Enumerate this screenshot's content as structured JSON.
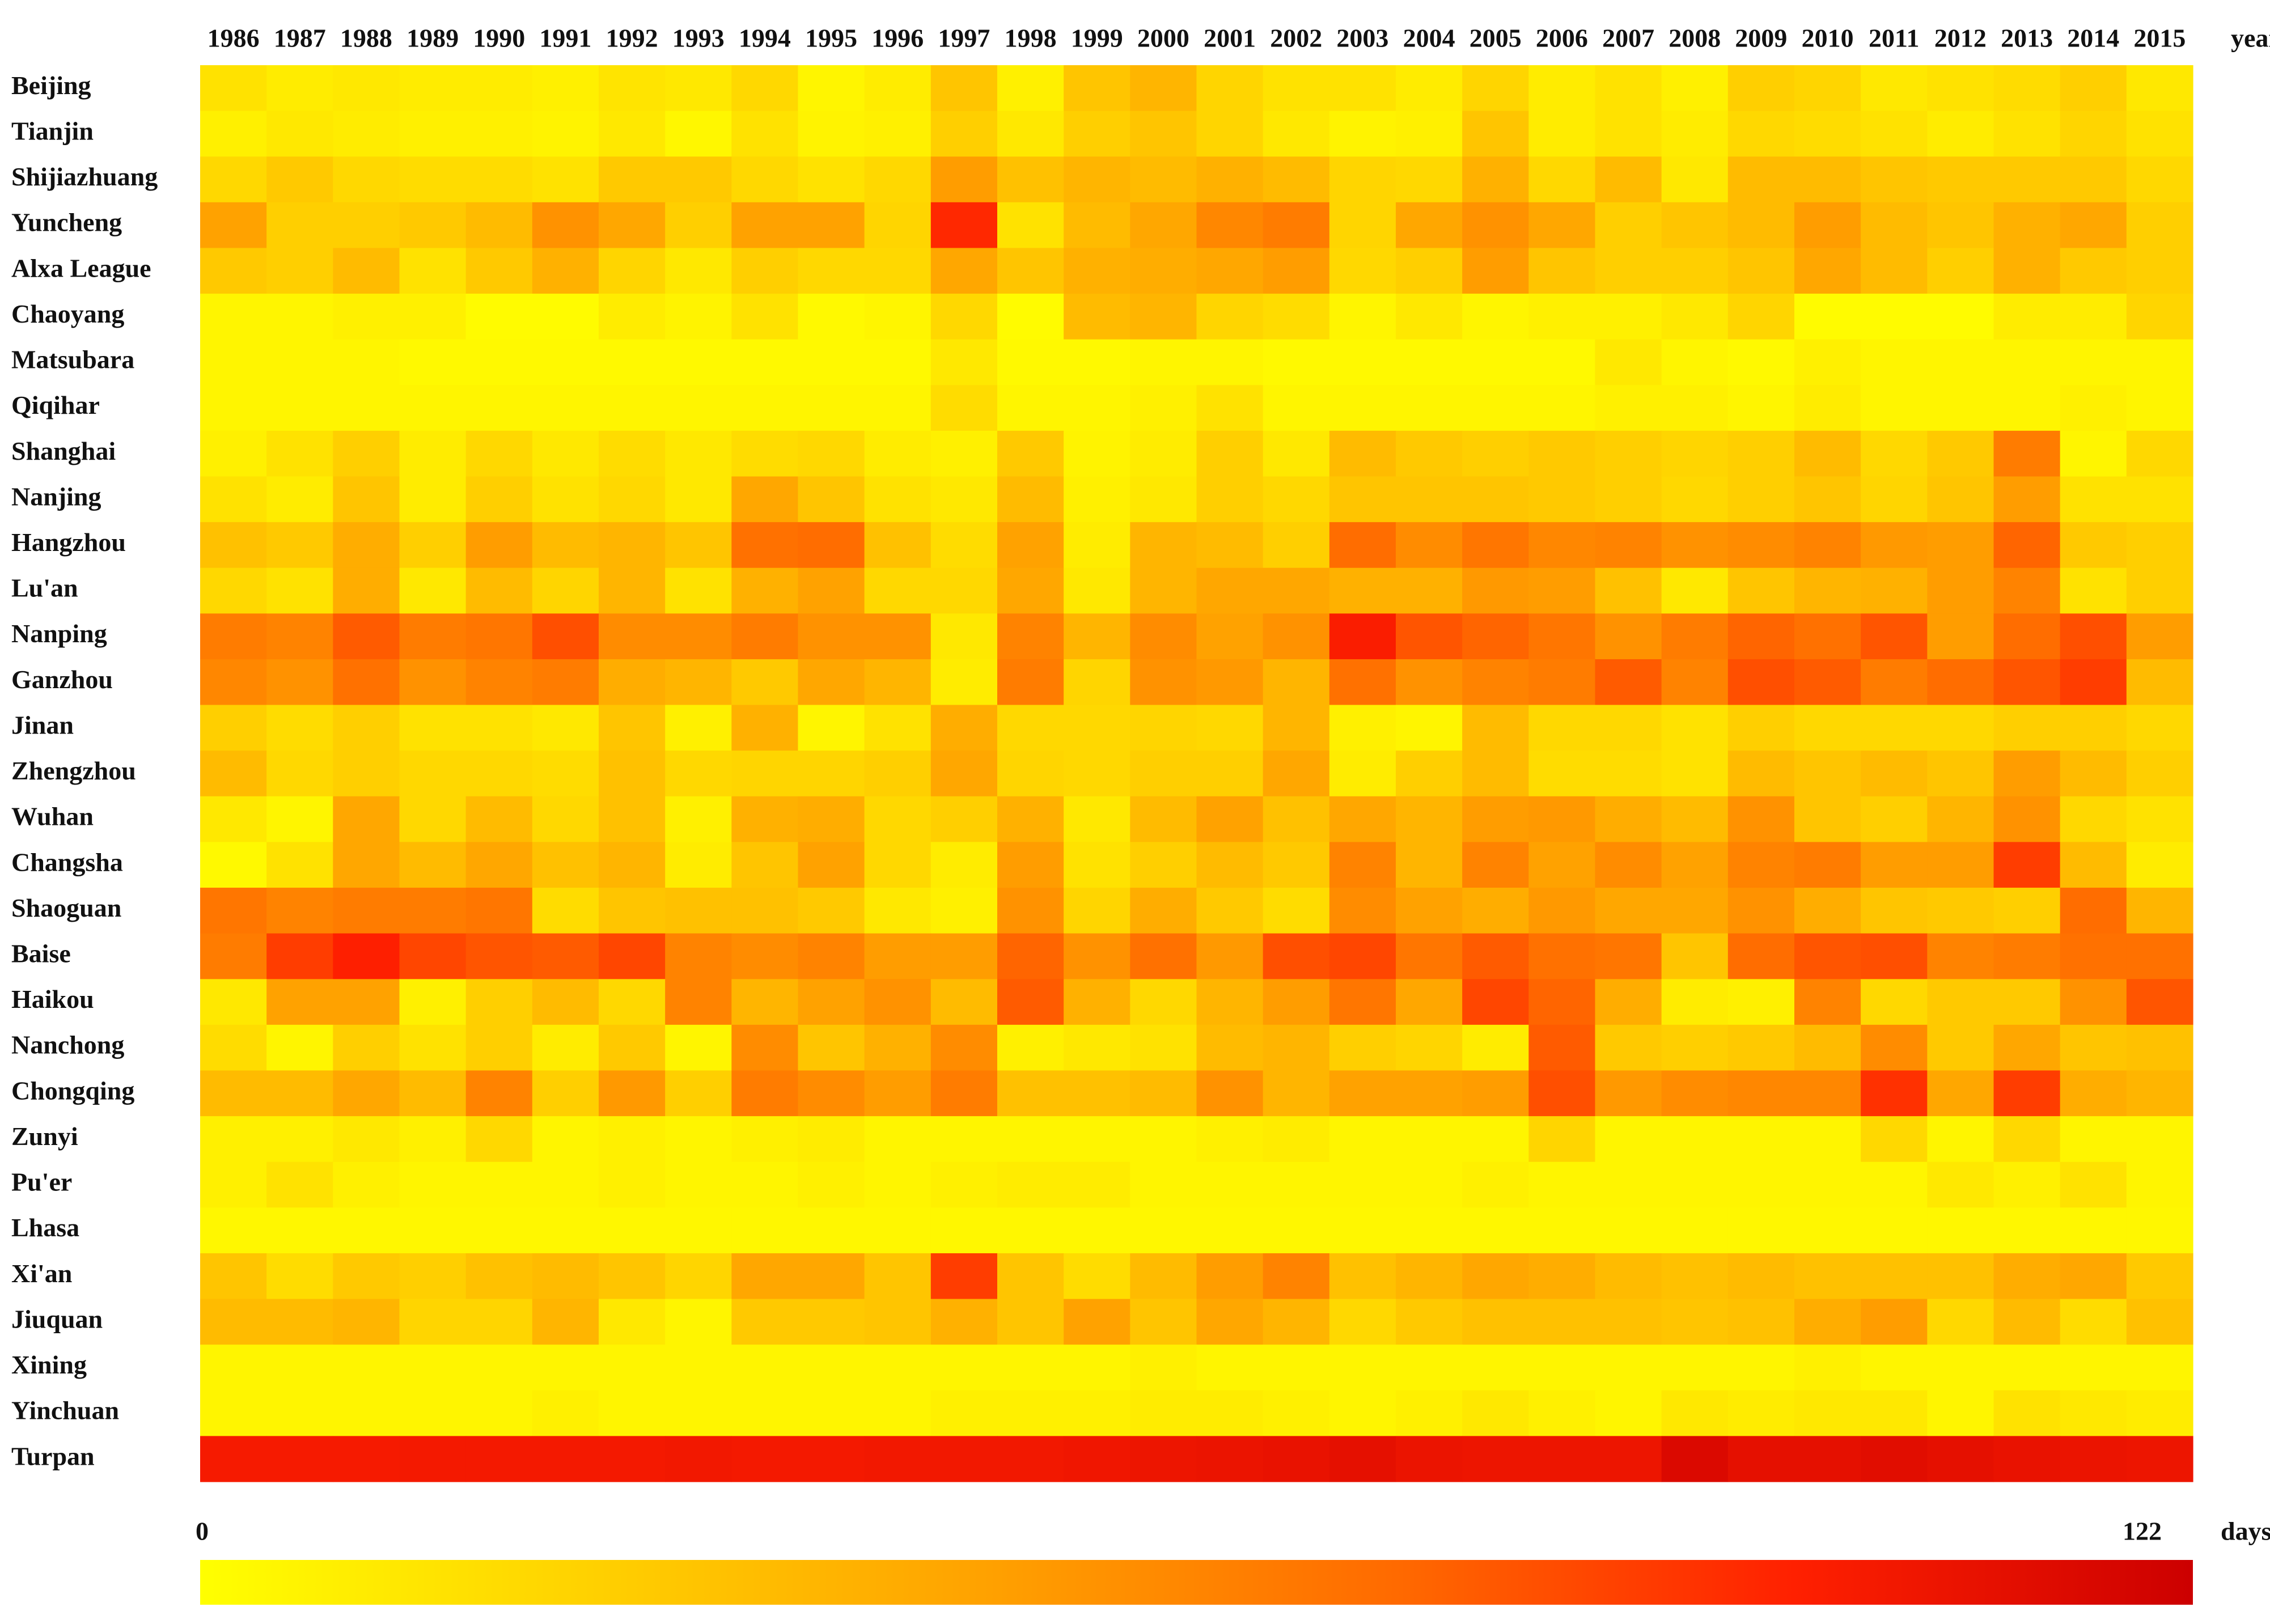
{
  "chart_data": {
    "type": "heatmap",
    "x": [
      "1986",
      "1987",
      "1988",
      "1989",
      "1990",
      "1991",
      "1992",
      "1993",
      "1994",
      "1995",
      "1996",
      "1997",
      "1998",
      "1999",
      "2000",
      "2001",
      "2002",
      "2003",
      "2004",
      "2005",
      "2006",
      "2007",
      "2008",
      "2009",
      "2010",
      "2011",
      "2012",
      "2013",
      "2014",
      "2015"
    ],
    "x_label": "years",
    "y": [
      "Beijing",
      "Tianjin",
      "Shijiazhuang",
      "Yuncheng",
      "Alxa League",
      "Chaoyang",
      "Matsubara",
      "Qiqihar",
      "Shanghai",
      "Nanjing",
      "Hangzhou",
      "Lu'an",
      "Nanping",
      "Ganzhou",
      "Jinan",
      "Zhengzhou",
      "Wuhan",
      "Changsha",
      "Shaoguan",
      "Baise",
      "Haikou",
      "Nanchong",
      "Chongqing",
      "Zunyi",
      "Pu'er",
      "Lhasa",
      "Xi'an",
      "Jiuquan",
      "Xining",
      "Yinchuan",
      "Turpan"
    ],
    "values": [
      [
        15,
        10,
        12,
        10,
        10,
        8,
        14,
        12,
        20,
        5,
        10,
        30,
        8,
        30,
        38,
        22,
        15,
        15,
        10,
        22,
        10,
        15,
        8,
        25,
        22,
        12,
        15,
        18,
        25,
        12
      ],
      [
        8,
        12,
        10,
        8,
        8,
        6,
        12,
        4,
        15,
        6,
        8,
        25,
        12,
        25,
        30,
        22,
        12,
        6,
        8,
        30,
        10,
        15,
        10,
        20,
        18,
        15,
        10,
        15,
        22,
        15
      ],
      [
        20,
        28,
        20,
        18,
        18,
        15,
        28,
        28,
        20,
        15,
        20,
        50,
        32,
        38,
        35,
        40,
        35,
        22,
        20,
        40,
        20,
        35,
        12,
        35,
        35,
        30,
        28,
        28,
        28,
        20
      ],
      [
        48,
        25,
        25,
        28,
        35,
        55,
        45,
        25,
        48,
        48,
        22,
        95,
        15,
        35,
        45,
        60,
        65,
        22,
        45,
        55,
        45,
        25,
        30,
        35,
        50,
        35,
        30,
        40,
        45,
        25
      ],
      [
        28,
        25,
        35,
        15,
        28,
        40,
        22,
        12,
        25,
        20,
        20,
        45,
        30,
        40,
        42,
        45,
        50,
        20,
        25,
        50,
        30,
        25,
        25,
        30,
        45,
        35,
        25,
        40,
        28,
        25
      ],
      [
        5,
        5,
        8,
        8,
        2,
        2,
        10,
        6,
        15,
        3,
        5,
        20,
        2,
        35,
        38,
        22,
        18,
        5,
        12,
        5,
        8,
        8,
        12,
        22,
        2,
        2,
        2,
        10,
        10,
        22
      ],
      [
        5,
        5,
        5,
        3,
        3,
        3,
        3,
        3,
        3,
        3,
        3,
        12,
        3,
        3,
        5,
        5,
        3,
        3,
        3,
        3,
        3,
        12,
        5,
        3,
        8,
        5,
        5,
        5,
        5,
        5
      ],
      [
        5,
        5,
        5,
        5,
        5,
        5,
        5,
        5,
        5,
        5,
        5,
        18,
        5,
        5,
        8,
        15,
        5,
        5,
        5,
        5,
        5,
        8,
        8,
        5,
        10,
        5,
        5,
        5,
        8,
        5
      ],
      [
        8,
        15,
        25,
        10,
        20,
        12,
        18,
        12,
        18,
        20,
        10,
        8,
        28,
        6,
        10,
        25,
        12,
        35,
        28,
        25,
        28,
        25,
        22,
        25,
        35,
        20,
        28,
        65,
        5,
        20
      ],
      [
        15,
        10,
        30,
        10,
        25,
        15,
        20,
        12,
        45,
        30,
        15,
        12,
        35,
        8,
        12,
        25,
        20,
        30,
        30,
        30,
        28,
        25,
        20,
        25,
        30,
        22,
        30,
        50,
        15,
        15
      ],
      [
        32,
        28,
        42,
        25,
        50,
        35,
        38,
        30,
        70,
        72,
        32,
        18,
        48,
        10,
        38,
        35,
        25,
        72,
        58,
        68,
        60,
        62,
        55,
        58,
        62,
        52,
        50,
        75,
        28,
        25
      ],
      [
        20,
        15,
        42,
        12,
        35,
        22,
        38,
        15,
        40,
        48,
        20,
        20,
        45,
        12,
        38,
        45,
        45,
        40,
        40,
        52,
        50,
        32,
        12,
        30,
        38,
        40,
        50,
        62,
        15,
        25
      ],
      [
        65,
        62,
        78,
        65,
        68,
        82,
        58,
        58,
        65,
        55,
        55,
        12,
        62,
        38,
        58,
        48,
        55,
        100,
        80,
        75,
        68,
        55,
        65,
        75,
        70,
        80,
        50,
        72,
        82,
        50
      ],
      [
        60,
        55,
        70,
        55,
        62,
        65,
        42,
        38,
        28,
        45,
        38,
        10,
        65,
        22,
        55,
        52,
        38,
        70,
        55,
        62,
        65,
        78,
        62,
        82,
        78,
        65,
        72,
        80,
        88,
        35
      ],
      [
        25,
        18,
        25,
        15,
        15,
        12,
        30,
        8,
        40,
        5,
        15,
        42,
        20,
        20,
        22,
        20,
        38,
        8,
        5,
        35,
        20,
        20,
        15,
        25,
        20,
        20,
        20,
        25,
        25,
        20
      ],
      [
        35,
        20,
        25,
        20,
        20,
        18,
        32,
        20,
        22,
        22,
        25,
        45,
        22,
        20,
        25,
        25,
        45,
        10,
        25,
        35,
        18,
        18,
        15,
        35,
        30,
        35,
        30,
        50,
        35,
        25
      ],
      [
        12,
        5,
        45,
        20,
        35,
        20,
        32,
        8,
        40,
        42,
        20,
        25,
        40,
        12,
        35,
        48,
        32,
        45,
        38,
        50,
        52,
        42,
        35,
        55,
        30,
        25,
        38,
        55,
        20,
        15
      ],
      [
        3,
        15,
        45,
        35,
        45,
        32,
        38,
        10,
        30,
        48,
        20,
        10,
        50,
        15,
        25,
        35,
        28,
        62,
        38,
        62,
        48,
        58,
        48,
        62,
        65,
        50,
        50,
        88,
        35,
        10
      ],
      [
        68,
        62,
        65,
        65,
        68,
        18,
        30,
        32,
        32,
        28,
        12,
        8,
        55,
        22,
        42,
        28,
        18,
        58,
        48,
        42,
        52,
        45,
        45,
        55,
        42,
        30,
        28,
        25,
        72,
        38
      ],
      [
        65,
        88,
        98,
        85,
        80,
        78,
        85,
        62,
        58,
        62,
        50,
        50,
        75,
        55,
        70,
        52,
        82,
        85,
        68,
        78,
        70,
        68,
        30,
        72,
        80,
        82,
        62,
        65,
        70,
        70
      ],
      [
        12,
        48,
        48,
        8,
        25,
        35,
        20,
        62,
        38,
        48,
        55,
        35,
        78,
        40,
        20,
        38,
        50,
        68,
        45,
        85,
        75,
        42,
        10,
        8,
        62,
        20,
        28,
        28,
        55,
        80
      ],
      [
        18,
        5,
        25,
        15,
        25,
        10,
        28,
        5,
        58,
        30,
        40,
        58,
        8,
        12,
        15,
        35,
        38,
        25,
        22,
        10,
        78,
        28,
        25,
        28,
        35,
        58,
        28,
        45,
        30,
        32
      ],
      [
        35,
        35,
        45,
        35,
        62,
        25,
        52,
        25,
        65,
        58,
        50,
        65,
        32,
        32,
        35,
        55,
        38,
        48,
        48,
        50,
        82,
        52,
        58,
        60,
        60,
        92,
        45,
        88,
        42,
        38
      ],
      [
        8,
        8,
        12,
        8,
        20,
        5,
        8,
        5,
        8,
        10,
        5,
        5,
        5,
        5,
        5,
        8,
        10,
        5,
        5,
        5,
        22,
        5,
        5,
        5,
        5,
        20,
        5,
        20,
        5,
        5
      ],
      [
        8,
        15,
        8,
        5,
        5,
        5,
        8,
        5,
        5,
        8,
        5,
        8,
        10,
        10,
        5,
        5,
        5,
        5,
        5,
        8,
        5,
        5,
        5,
        5,
        5,
        5,
        12,
        8,
        15,
        5
      ],
      [
        4,
        4,
        4,
        4,
        4,
        4,
        4,
        4,
        4,
        4,
        4,
        4,
        4,
        4,
        4,
        4,
        4,
        4,
        4,
        4,
        4,
        4,
        4,
        4,
        4,
        4,
        4,
        4,
        4,
        4
      ],
      [
        30,
        18,
        28,
        25,
        32,
        35,
        30,
        22,
        45,
        45,
        30,
        88,
        30,
        18,
        35,
        50,
        62,
        32,
        38,
        45,
        42,
        35,
        32,
        35,
        32,
        32,
        32,
        42,
        45,
        28
      ],
      [
        35,
        35,
        38,
        22,
        22,
        38,
        12,
        5,
        28,
        28,
        30,
        40,
        30,
        48,
        30,
        45,
        38,
        20,
        28,
        32,
        32,
        32,
        30,
        32,
        42,
        50,
        20,
        35,
        18,
        32
      ],
      [
        5,
        5,
        5,
        5,
        5,
        5,
        5,
        5,
        5,
        5,
        5,
        5,
        5,
        5,
        8,
        5,
        5,
        5,
        5,
        5,
        5,
        5,
        5,
        5,
        8,
        5,
        5,
        5,
        5,
        5
      ],
      [
        5,
        5,
        5,
        5,
        5,
        8,
        5,
        5,
        5,
        5,
        5,
        8,
        8,
        8,
        10,
        10,
        8,
        5,
        8,
        12,
        8,
        5,
        12,
        10,
        12,
        12,
        5,
        15,
        12,
        10
      ],
      [
        102,
        102,
        102,
        103,
        103,
        103,
        103,
        104,
        103,
        103,
        104,
        104,
        104,
        105,
        106,
        107,
        108,
        110,
        107,
        106,
        106,
        106,
        115,
        110,
        110,
        112,
        110,
        108,
        107,
        106
      ]
    ],
    "zlim": [
      0,
      122
    ],
    "zticks": [
      0,
      122
    ],
    "z_label": "days",
    "colorscale": [
      "#ffff00",
      "#ffd000",
      "#ffa000",
      "#ff6a00",
      "#ff2000",
      "#cc0000"
    ]
  }
}
